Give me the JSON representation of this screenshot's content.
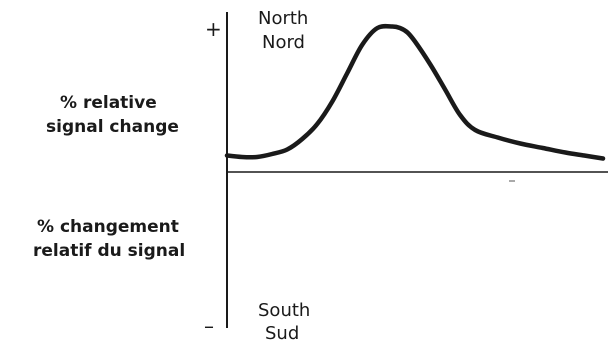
{
  "chart_data": {
    "type": "line",
    "title": "",
    "ylabel_en": [
      "% relative",
      "signal change"
    ],
    "ylabel_fr": [
      "% changement",
      "relatif du signal"
    ],
    "top_label": [
      "North",
      "Nord"
    ],
    "bottom_label": [
      "South",
      "Sud"
    ],
    "top_sign": "+",
    "bottom_sign": "–",
    "ylim": [
      -100,
      100
    ],
    "grid": false,
    "legend": "none",
    "series": [
      {
        "x": [
          0,
          4,
          8,
          12,
          16,
          20,
          24,
          28,
          32,
          36,
          40,
          44,
          46,
          48,
          50,
          54,
          58,
          62,
          66,
          72,
          78,
          84,
          90,
          95,
          100
        ],
        "values": [
          11,
          10,
          10,
          12,
          15,
          22,
          32,
          47,
          66,
          85,
          96,
          97,
          96,
          93,
          87,
          72,
          55,
          38,
          28,
          23,
          19,
          16,
          13,
          11,
          9
        ]
      }
    ]
  }
}
